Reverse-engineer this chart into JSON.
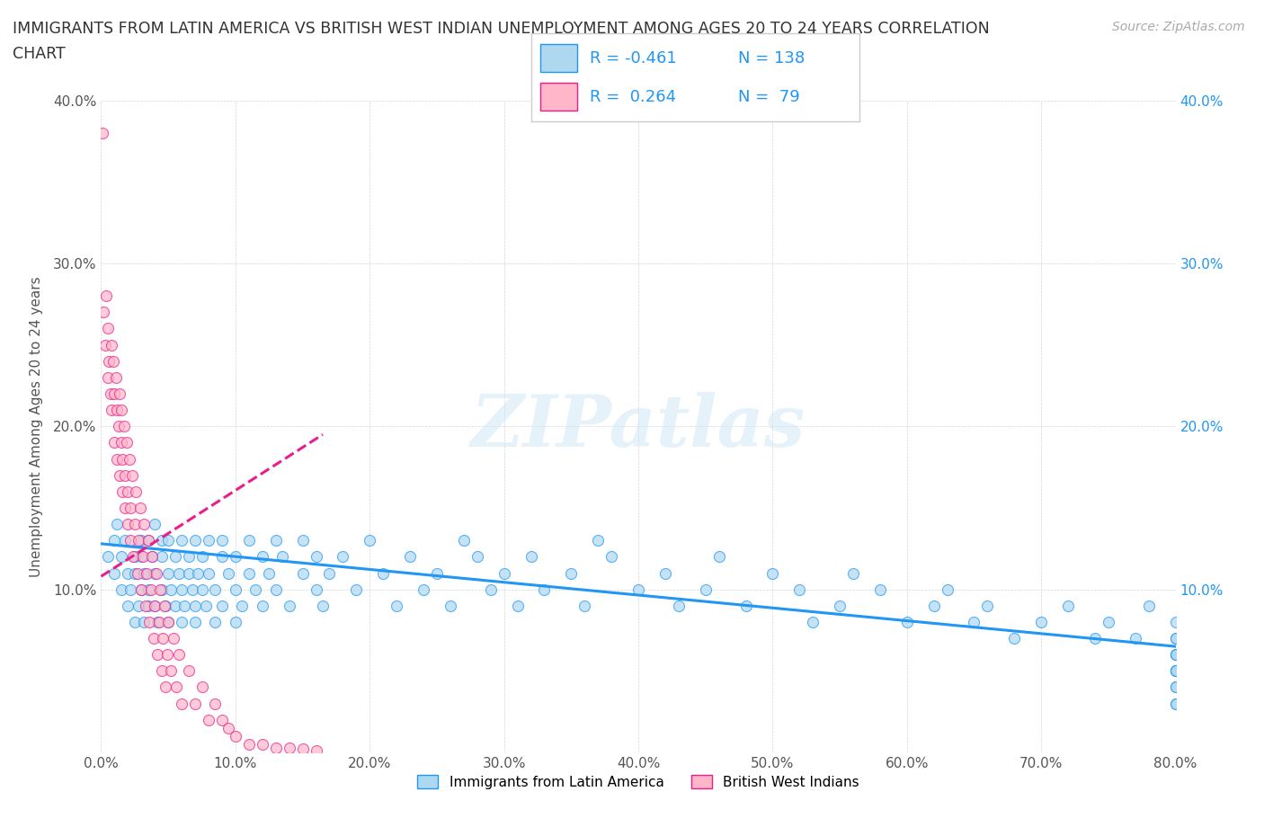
{
  "title_line1": "IMMIGRANTS FROM LATIN AMERICA VS BRITISH WEST INDIAN UNEMPLOYMENT AMONG AGES 20 TO 24 YEARS CORRELATION",
  "title_line2": "CHART",
  "source_text": "Source: ZipAtlas.com",
  "ylabel": "Unemployment Among Ages 20 to 24 years",
  "xlim": [
    0.0,
    0.8
  ],
  "ylim": [
    0.0,
    0.4
  ],
  "xticks": [
    0.0,
    0.1,
    0.2,
    0.3,
    0.4,
    0.5,
    0.6,
    0.7,
    0.8
  ],
  "yticks": [
    0.0,
    0.1,
    0.2,
    0.3,
    0.4
  ],
  "xtick_labels": [
    "0.0%",
    "10.0%",
    "20.0%",
    "30.0%",
    "40.0%",
    "50.0%",
    "60.0%",
    "70.0%",
    "80.0%"
  ],
  "ytick_labels_left": [
    "",
    "10.0%",
    "20.0%",
    "30.0%",
    "40.0%"
  ],
  "ytick_labels_right": [
    "",
    "10.0%",
    "20.0%",
    "30.0%",
    "40.0%"
  ],
  "color_blue_face": "#add8f0",
  "color_blue_edge": "#2196F3",
  "color_pink_face": "#ffb6c8",
  "color_pink_edge": "#e91e8c",
  "color_trend_blue": "#2196F3",
  "color_trend_pink": "#e91e8c",
  "watermark": "ZIPatlas",
  "label_latin": "Immigrants from Latin America",
  "label_bwi": "British West Indians",
  "blue_scatter_x": [
    0.005,
    0.01,
    0.01,
    0.012,
    0.015,
    0.015,
    0.018,
    0.02,
    0.02,
    0.022,
    0.025,
    0.025,
    0.025,
    0.028,
    0.03,
    0.03,
    0.03,
    0.032,
    0.032,
    0.035,
    0.035,
    0.035,
    0.038,
    0.04,
    0.04,
    0.04,
    0.042,
    0.045,
    0.045,
    0.045,
    0.048,
    0.05,
    0.05,
    0.05,
    0.052,
    0.055,
    0.055,
    0.058,
    0.06,
    0.06,
    0.06,
    0.062,
    0.065,
    0.065,
    0.068,
    0.07,
    0.07,
    0.07,
    0.072,
    0.075,
    0.075,
    0.078,
    0.08,
    0.08,
    0.085,
    0.085,
    0.09,
    0.09,
    0.09,
    0.095,
    0.1,
    0.1,
    0.1,
    0.105,
    0.11,
    0.11,
    0.115,
    0.12,
    0.12,
    0.125,
    0.13,
    0.13,
    0.135,
    0.14,
    0.15,
    0.15,
    0.16,
    0.16,
    0.165,
    0.17,
    0.18,
    0.19,
    0.2,
    0.21,
    0.22,
    0.23,
    0.24,
    0.25,
    0.26,
    0.27,
    0.28,
    0.29,
    0.3,
    0.31,
    0.32,
    0.33,
    0.35,
    0.36,
    0.37,
    0.38,
    0.4,
    0.42,
    0.43,
    0.45,
    0.46,
    0.48,
    0.5,
    0.52,
    0.53,
    0.55,
    0.56,
    0.58,
    0.6,
    0.62,
    0.63,
    0.65,
    0.66,
    0.68,
    0.7,
    0.72,
    0.74,
    0.75,
    0.77,
    0.78,
    0.8,
    0.8,
    0.8,
    0.8,
    0.8,
    0.8,
    0.8,
    0.8,
    0.8,
    0.8,
    0.8,
    0.8,
    0.8,
    0.8
  ],
  "blue_scatter_y": [
    0.12,
    0.13,
    0.11,
    0.14,
    0.1,
    0.12,
    0.13,
    0.11,
    0.09,
    0.1,
    0.12,
    0.08,
    0.11,
    0.09,
    0.13,
    0.1,
    0.12,
    0.11,
    0.08,
    0.09,
    0.1,
    0.13,
    0.12,
    0.11,
    0.09,
    0.14,
    0.08,
    0.1,
    0.12,
    0.13,
    0.09,
    0.11,
    0.08,
    0.13,
    0.1,
    0.09,
    0.12,
    0.11,
    0.1,
    0.08,
    0.13,
    0.09,
    0.11,
    0.12,
    0.1,
    0.09,
    0.13,
    0.08,
    0.11,
    0.12,
    0.1,
    0.09,
    0.13,
    0.11,
    0.1,
    0.08,
    0.12,
    0.09,
    0.13,
    0.11,
    0.1,
    0.12,
    0.08,
    0.09,
    0.11,
    0.13,
    0.1,
    0.12,
    0.09,
    0.11,
    0.1,
    0.13,
    0.12,
    0.09,
    0.11,
    0.13,
    0.1,
    0.12,
    0.09,
    0.11,
    0.12,
    0.1,
    0.13,
    0.11,
    0.09,
    0.12,
    0.1,
    0.11,
    0.09,
    0.13,
    0.12,
    0.1,
    0.11,
    0.09,
    0.12,
    0.1,
    0.11,
    0.09,
    0.13,
    0.12,
    0.1,
    0.11,
    0.09,
    0.1,
    0.12,
    0.09,
    0.11,
    0.1,
    0.08,
    0.09,
    0.11,
    0.1,
    0.08,
    0.09,
    0.1,
    0.08,
    0.09,
    0.07,
    0.08,
    0.09,
    0.07,
    0.08,
    0.07,
    0.09,
    0.06,
    0.07,
    0.08,
    0.05,
    0.06,
    0.07,
    0.05,
    0.06,
    0.05,
    0.04,
    0.05,
    0.03,
    0.04,
    0.03
  ],
  "pink_scatter_x": [
    0.001,
    0.002,
    0.003,
    0.004,
    0.005,
    0.005,
    0.006,
    0.007,
    0.008,
    0.008,
    0.009,
    0.01,
    0.01,
    0.011,
    0.012,
    0.012,
    0.013,
    0.014,
    0.014,
    0.015,
    0.015,
    0.016,
    0.016,
    0.017,
    0.018,
    0.018,
    0.019,
    0.02,
    0.02,
    0.021,
    0.022,
    0.022,
    0.023,
    0.024,
    0.025,
    0.026,
    0.027,
    0.028,
    0.029,
    0.03,
    0.031,
    0.032,
    0.033,
    0.034,
    0.035,
    0.036,
    0.037,
    0.038,
    0.039,
    0.04,
    0.041,
    0.042,
    0.043,
    0.044,
    0.045,
    0.046,
    0.047,
    0.048,
    0.049,
    0.05,
    0.052,
    0.054,
    0.056,
    0.058,
    0.06,
    0.065,
    0.07,
    0.075,
    0.08,
    0.085,
    0.09,
    0.095,
    0.1,
    0.11,
    0.12,
    0.13,
    0.14,
    0.15,
    0.16
  ],
  "pink_scatter_y": [
    0.38,
    0.27,
    0.25,
    0.28,
    0.23,
    0.26,
    0.24,
    0.22,
    0.25,
    0.21,
    0.24,
    0.22,
    0.19,
    0.23,
    0.21,
    0.18,
    0.2,
    0.22,
    0.17,
    0.19,
    0.21,
    0.16,
    0.18,
    0.2,
    0.15,
    0.17,
    0.19,
    0.14,
    0.16,
    0.18,
    0.13,
    0.15,
    0.17,
    0.12,
    0.14,
    0.16,
    0.11,
    0.13,
    0.15,
    0.1,
    0.12,
    0.14,
    0.09,
    0.11,
    0.13,
    0.08,
    0.1,
    0.12,
    0.07,
    0.09,
    0.11,
    0.06,
    0.08,
    0.1,
    0.05,
    0.07,
    0.09,
    0.04,
    0.06,
    0.08,
    0.05,
    0.07,
    0.04,
    0.06,
    0.03,
    0.05,
    0.03,
    0.04,
    0.02,
    0.03,
    0.02,
    0.015,
    0.01,
    0.005,
    0.005,
    0.003,
    0.003,
    0.002,
    0.001
  ],
  "blue_trend_x": [
    0.0,
    0.8
  ],
  "blue_trend_y": [
    0.128,
    0.065
  ],
  "pink_trend_x": [
    0.0,
    0.165
  ],
  "pink_trend_y": [
    0.108,
    0.195
  ]
}
